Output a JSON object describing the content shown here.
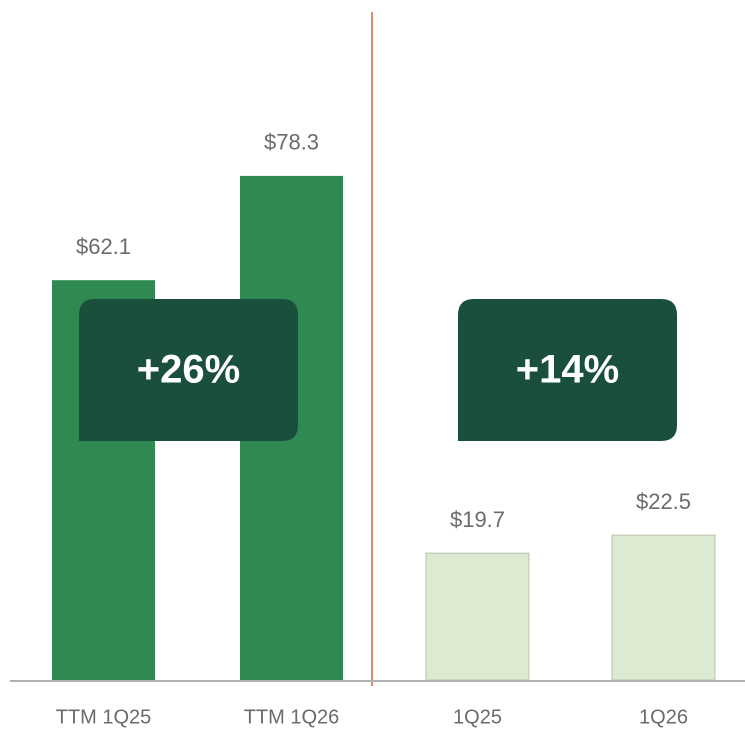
{
  "chart_data": {
    "type": "bar",
    "categories": [
      "TTM 1Q25",
      "TTM 1Q26",
      "1Q25",
      "1Q26"
    ],
    "values": [
      62.1,
      78.3,
      19.7,
      22.5
    ],
    "value_labels": [
      "$62.1",
      "$78.3",
      "$19.7",
      "$22.5"
    ],
    "colors": [
      "#2e8a52",
      "#2e8a52",
      "#dbead0",
      "#dbead0"
    ],
    "annotations": [
      "+26%",
      "+14%"
    ],
    "annotation_color": "#1a4f3b",
    "ylim": [
      0,
      105
    ]
  }
}
